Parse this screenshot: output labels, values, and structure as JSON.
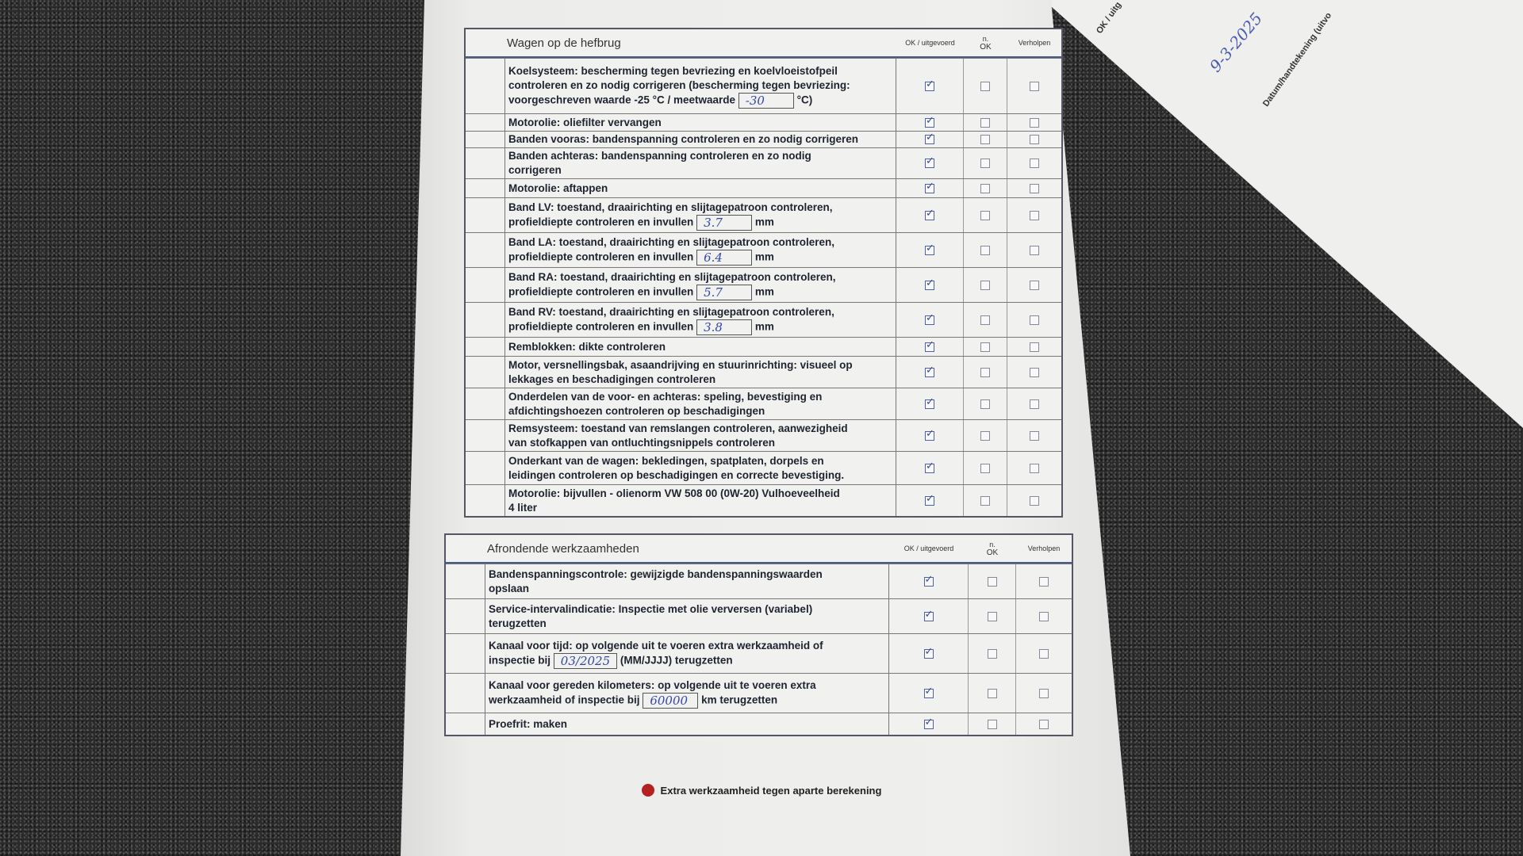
{
  "colors": {
    "ink": "#3447a8",
    "marker": "#b52020",
    "background": "#2b2b2b"
  },
  "columns": {
    "ok": "OK / uitgevoerd",
    "nok_small": "n.",
    "nok": "OK",
    "fixed": "Verholpen"
  },
  "table1": {
    "title": "Wagen op de hefbrug",
    "rows": [
      {
        "lines": [
          "Koelsysteem: bescherming tegen bevriezing en koelvloeistofpeil",
          "controleren en zo nodig corrigeren (bescherming tegen bevriezing:",
          "voorgeschreven waarde -25 °C / meetwaarde"
        ],
        "value": "-30",
        "suffix": "°C)",
        "ok": true
      },
      {
        "lines": [
          "Motorolie: oliefilter vervangen"
        ],
        "ok": true
      },
      {
        "lines": [
          "Banden vooras: bandenspanning controleren en zo nodig corrigeren"
        ],
        "ok": true
      },
      {
        "lines": [
          "Banden achteras: bandenspanning controleren en zo nodig",
          "corrigeren"
        ],
        "ok": true
      },
      {
        "lines": [
          "Motorolie: aftappen"
        ],
        "ok": true
      },
      {
        "lines": [
          "Band LV: toestand, draairichting en slijtagepatroon controleren,",
          "profieldiepte controleren en invullen"
        ],
        "value": "3.7",
        "suffix": "mm",
        "ok": true
      },
      {
        "lines": [
          "Band LA: toestand, draairichting en slijtagepatroon controleren,",
          "profieldiepte controleren en invullen"
        ],
        "value": "6.4",
        "suffix": "mm",
        "ok": true
      },
      {
        "lines": [
          "Band RA: toestand, draairichting en slijtagepatroon controleren,",
          "profieldiepte controleren en invullen"
        ],
        "value": "5.7",
        "suffix": "mm",
        "ok": true
      },
      {
        "lines": [
          "Band RV: toestand, draairichting en slijtagepatroon controleren,",
          "profieldiepte controleren en invullen"
        ],
        "value": "3.8",
        "suffix": "mm",
        "ok": true
      },
      {
        "lines": [
          "Remblokken: dikte controleren"
        ],
        "ok": true
      },
      {
        "lines": [
          "Motor, versnellingsbak, asaandrijving en stuurinrichting: visueel op",
          "lekkages en beschadigingen controleren"
        ],
        "ok": true
      },
      {
        "lines": [
          "Onderdelen van de voor- en achteras: speling, bevestiging en",
          "afdichtingshoezen controleren op beschadigingen"
        ],
        "ok": true
      },
      {
        "lines": [
          "Remsysteem: toestand van remslangen controleren, aanwezigheid",
          "van stofkappen van ontluchtingsnippels controleren"
        ],
        "ok": true
      },
      {
        "lines": [
          "Onderkant van de wagen: bekledingen, spatplaten, dorpels en",
          "leidingen controleren op beschadigingen en correcte bevestiging."
        ],
        "ok": true
      },
      {
        "lines": [
          "Motorolie: bijvullen - olienorm VW 508 00 (0W-20) Vulhoeveelheid",
          "4 liter"
        ],
        "ok": true
      }
    ]
  },
  "table2": {
    "title": "Afrondende werkzaamheden",
    "rows": [
      {
        "lines": [
          "Bandenspanningscontrole: gewijzigde bandenspanningswaarden",
          "opslaan"
        ],
        "ok": true
      },
      {
        "lines": [
          "Service-intervalindicatie: Inspectie met olie verversen (variabel)",
          "terugzetten"
        ],
        "ok": true
      },
      {
        "lines": [
          "Kanaal voor tijd: op volgende uit te voeren extra werkzaamheid of",
          "inspectie bij"
        ],
        "value": "03/2025",
        "suffix": "(MM/JJJJ) terugzetten",
        "ok": true
      },
      {
        "lines": [
          "Kanaal voor gereden kilometers: op volgende uit te voeren extra",
          "werkzaamheid of inspectie bij"
        ],
        "value": "60000",
        "suffix": "km terugzetten",
        "ok": true
      },
      {
        "lines": [
          "Proefrit: maken"
        ],
        "ok": true
      }
    ]
  },
  "footer": {
    "legend": "Extra werkzaamheid tegen aparte berekening"
  },
  "second_sheet": {
    "col_label": "OK / uitg",
    "signature_label": "Datum/handtekening (uitvo",
    "handwritten_date": "9-3-2025"
  }
}
